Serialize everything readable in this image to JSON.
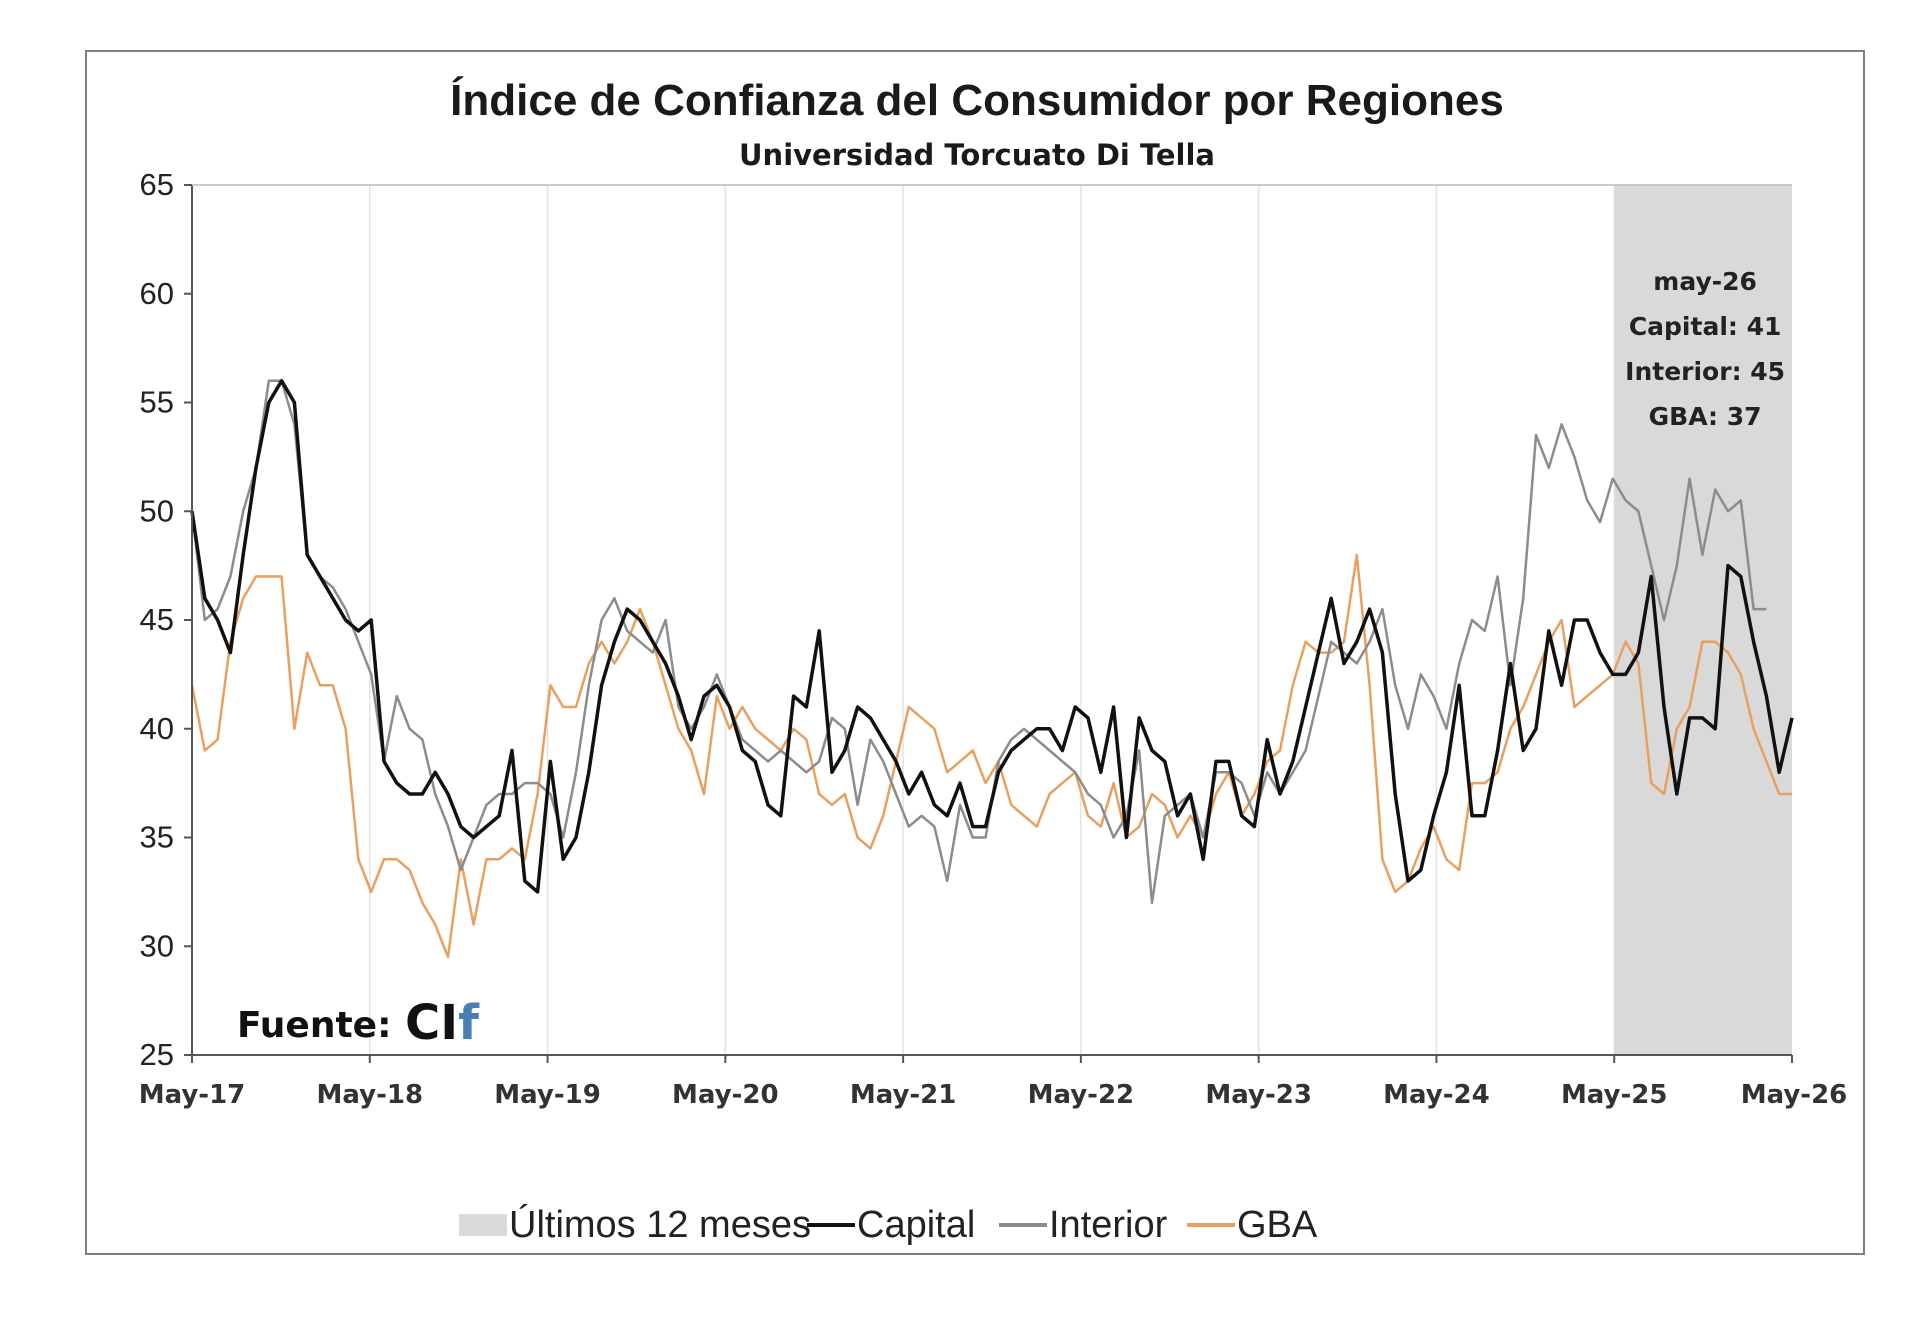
{
  "chart_data": {
    "type": "line",
    "title": "Índice de Confianza del Consumidor por Regiones",
    "subtitle": "Universidad Torcuato Di Tella",
    "ylim": [
      25,
      65
    ],
    "yticks": [
      "25",
      "30",
      "35",
      "40",
      "45",
      "50",
      "55",
      "60",
      "65"
    ],
    "xticks": [
      "May-17",
      "May-18",
      "May-19",
      "May-20",
      "May-21",
      "May-22",
      "May-23",
      "May-24",
      "May-25",
      "May-26"
    ],
    "x_start": "May-17",
    "x_end": "May-26",
    "shaded_region": {
      "from": "May-25",
      "to": "May-26",
      "label": "Últimos 12 meses",
      "color": "#d9d9d9"
    },
    "annotation": {
      "lines": [
        "may-26",
        "Capital: 41",
        "Interior: 45",
        "GBA: 37"
      ]
    },
    "source": {
      "label": "Fuente:",
      "logo": "CIf"
    },
    "grid": "vertical",
    "legend_position": "bottom",
    "series": [
      {
        "name": "Capital",
        "color": "#111111",
        "values": [
          50,
          46,
          45,
          43.5,
          48,
          52,
          55,
          56,
          55,
          48,
          47,
          46,
          45,
          44.5,
          45,
          38.5,
          37.5,
          37,
          37,
          38,
          37,
          35.5,
          35,
          35.5,
          36,
          39,
          33,
          32.5,
          38.5,
          34,
          35,
          38,
          42,
          44,
          45.5,
          45,
          44,
          43,
          41.5,
          39.5,
          41.5,
          42,
          41,
          39,
          38.5,
          36.5,
          36,
          41.5,
          41,
          44.5,
          38,
          39,
          41,
          40.5,
          39.5,
          38.5,
          37,
          38,
          36.5,
          36,
          37.5,
          35.5,
          35.5,
          38,
          39,
          39.5,
          40,
          40,
          39,
          41,
          40.5,
          38,
          41,
          35,
          40.5,
          39,
          38.5,
          36,
          37,
          34,
          38.5,
          38.5,
          36,
          35.5,
          39.5,
          37,
          38.5,
          41,
          43.5,
          46,
          43,
          44,
          45.5,
          43.5,
          37,
          33,
          33.5,
          36,
          38,
          42,
          36,
          36,
          39,
          43,
          39,
          40,
          44.5,
          42,
          45,
          45,
          43.5,
          42.5,
          42.5,
          43.5,
          47,
          41,
          37,
          40.5,
          40.5,
          40,
          47.5,
          47,
          44,
          41.5,
          38,
          40.5
        ]
      },
      {
        "name": "Interior",
        "color": "#8c8c8c",
        "values": [
          50,
          45,
          45.5,
          47,
          50,
          52,
          56,
          56,
          54,
          48,
          47,
          46.5,
          45.5,
          44,
          42.5,
          38.5,
          41.5,
          40,
          39.5,
          37,
          35.5,
          33.5,
          35,
          36.5,
          37,
          37,
          37.5,
          37.5,
          37,
          35,
          38,
          42,
          45,
          46,
          44.5,
          44,
          43.5,
          45,
          41,
          40,
          41,
          42.5,
          41,
          39.5,
          39,
          38.5,
          39,
          38.5,
          38,
          38.5,
          40.5,
          40,
          36.5,
          39.5,
          38.5,
          37,
          35.5,
          36,
          35.5,
          33,
          36.5,
          35,
          35,
          38.5,
          39.5,
          40,
          39.5,
          39,
          38.5,
          38,
          37,
          36.5,
          35,
          36,
          39,
          32,
          36,
          36.5,
          37,
          35,
          38,
          38,
          37.5,
          36,
          38,
          37,
          38,
          39,
          41.5,
          44,
          43.5,
          43,
          44,
          45.5,
          42,
          40,
          42.5,
          41.5,
          40,
          43,
          45,
          44.5,
          47,
          42,
          46,
          53.5,
          52,
          54,
          52.5,
          50.5,
          49.5,
          51.5,
          50.5,
          50,
          47.5,
          45,
          47.5,
          51.5,
          48,
          51,
          50,
          50.5,
          45.5,
          45.5
        ]
      },
      {
        "name": "GBA",
        "color": "#e8a060",
        "values": [
          42,
          39,
          39.5,
          44,
          46,
          47,
          47,
          47,
          40,
          43.5,
          42,
          42,
          40,
          34,
          32.5,
          34,
          34,
          33.5,
          32,
          31,
          29.5,
          34,
          31,
          34,
          34,
          34.5,
          34,
          37,
          42,
          41,
          41,
          43,
          44,
          43,
          44,
          45.5,
          44,
          42,
          40,
          39,
          37,
          41.5,
          40,
          41,
          40,
          39.5,
          39,
          40,
          39.5,
          37,
          36.5,
          37,
          35,
          34.5,
          36,
          38.5,
          41,
          40.5,
          40,
          38,
          38.5,
          39,
          37.5,
          38.5,
          36.5,
          36,
          35.5,
          37,
          37.5,
          38,
          36,
          35.5,
          37.5,
          35,
          35.5,
          37,
          36.5,
          35,
          36,
          35,
          37,
          38,
          36,
          37,
          38.5,
          39,
          42,
          44,
          43.5,
          43.5,
          44,
          48,
          42,
          34,
          32.5,
          33,
          34.5,
          35.5,
          34,
          33.5,
          37.5,
          37.5,
          38,
          40,
          41,
          42.5,
          44,
          45,
          41,
          41.5,
          42,
          42.5,
          44,
          43,
          37.5,
          37,
          40,
          41,
          44,
          44,
          43.5,
          42.5,
          40,
          38.5,
          37,
          37
        ]
      }
    ]
  },
  "legend": {
    "shade_label": "Últimos 12 meses",
    "items": [
      "Capital",
      "Interior",
      "GBA"
    ]
  }
}
